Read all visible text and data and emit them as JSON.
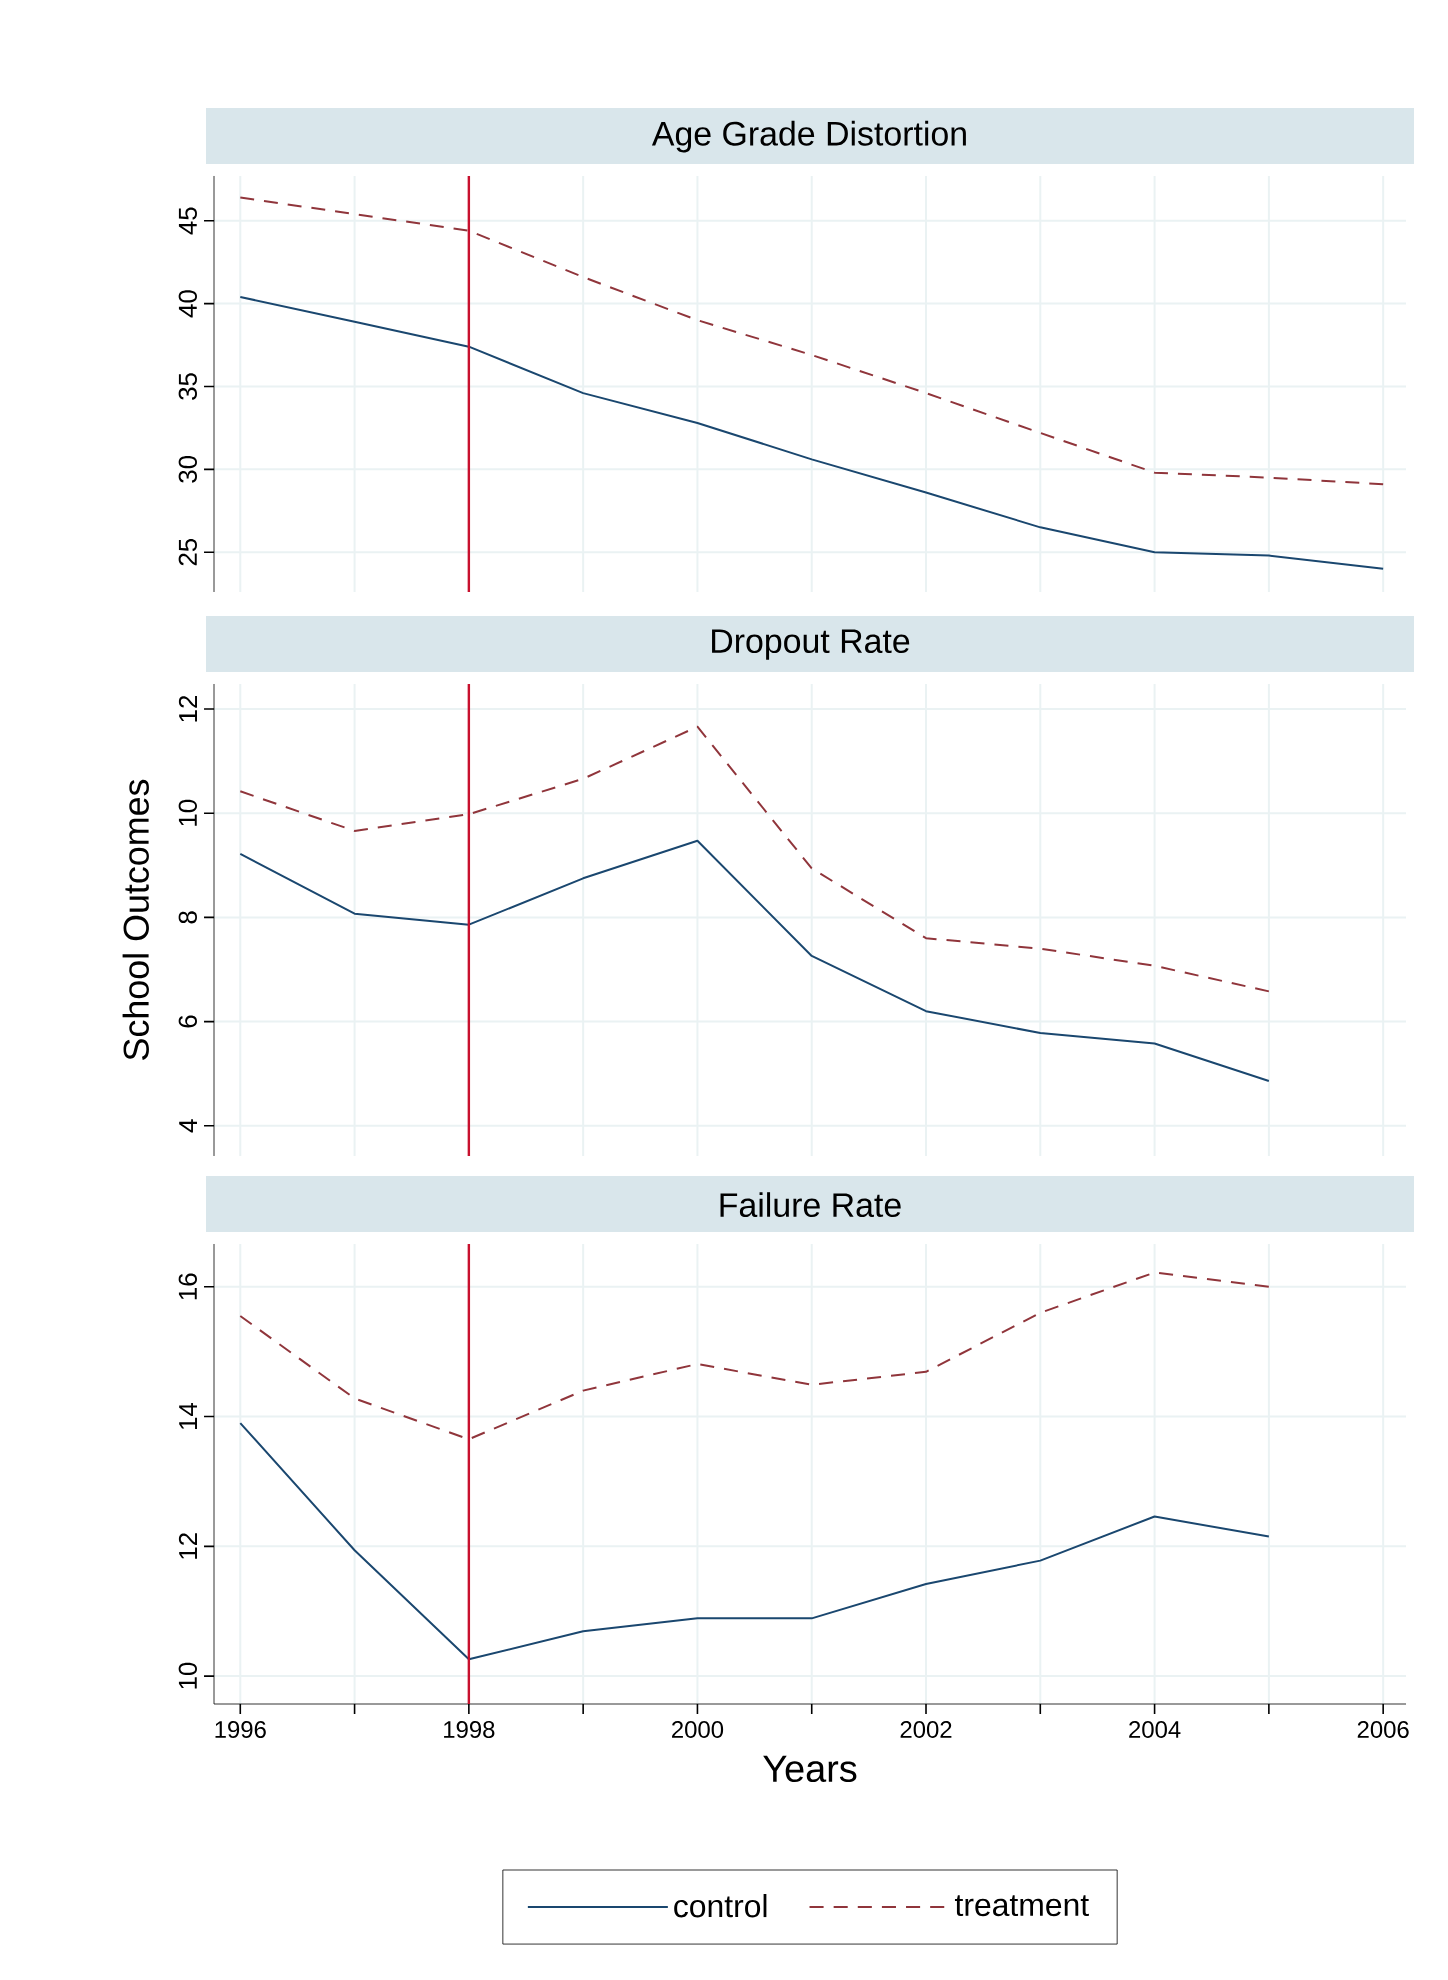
{
  "chart_data": [
    {
      "type": "line",
      "title": "Age Grade Distortion",
      "x": [
        1996,
        1997,
        1998,
        1999,
        2000,
        2001,
        2002,
        2003,
        2004,
        2005,
        2006
      ],
      "xlim": [
        1995.77,
        2006.2
      ],
      "xticks": [
        1996,
        {
          "value": 1997,
          "label": null
        },
        1998,
        {
          "value": 1999,
          "label": null
        },
        2000,
        {
          "value": 2001,
          "label": null
        },
        2002,
        {
          "value": 2003,
          "label": null
        },
        2004,
        {
          "value": 2005,
          "label": null
        },
        2006
      ],
      "ylim": [
        22.6,
        47.7
      ],
      "yticks": [
        25,
        30,
        35,
        40,
        45
      ],
      "grid": true,
      "tick_labels": "y",
      "ref_lines": [
        {
          "axis": "x",
          "value": 1998,
          "color": "#c8102e"
        }
      ],
      "series": [
        {
          "color": "#1a476f",
          "line_style": "solid",
          "values": [
            40.4,
            38.9,
            37.4,
            34.6,
            32.8,
            30.6,
            28.6,
            26.5,
            25.0,
            24.8,
            24.0
          ]
        },
        {
          "color": "#90353b",
          "line_style": "dashed",
          "values": [
            46.4,
            45.4,
            44.4,
            41.6,
            39.0,
            36.9,
            34.6,
            32.2,
            29.8,
            29.5,
            29.1
          ]
        }
      ]
    },
    {
      "type": "line",
      "title": "Dropout Rate",
      "ylabel": "School Outcomes",
      "x": [
        1996,
        1997,
        1998,
        1999,
        2000,
        2001,
        2002,
        2003,
        2004,
        2005
      ],
      "xlim": [
        1995.77,
        2006.2
      ],
      "xticks": [
        1996,
        {
          "value": 1997,
          "label": null
        },
        1998,
        {
          "value": 1999,
          "label": null
        },
        2000,
        {
          "value": 2001,
          "label": null
        },
        2002,
        {
          "value": 2003,
          "label": null
        },
        2004,
        {
          "value": 2005,
          "label": null
        },
        2006
      ],
      "ylim": [
        3.42,
        12.48
      ],
      "yticks": [
        4,
        6,
        8,
        10,
        12
      ],
      "grid": true,
      "tick_labels": "y",
      "ref_lines": [
        {
          "axis": "x",
          "value": 1998,
          "color": "#c8102e"
        }
      ],
      "series": [
        {
          "color": "#1a476f",
          "line_style": "solid",
          "values": [
            9.22,
            8.07,
            7.86,
            8.75,
            9.47,
            7.26,
            6.2,
            5.78,
            5.58,
            4.86
          ]
        },
        {
          "color": "#90353b",
          "line_style": "dashed",
          "values": [
            10.42,
            9.66,
            9.98,
            10.66,
            11.66,
            8.94,
            7.6,
            7.4,
            7.07,
            6.58
          ]
        }
      ]
    },
    {
      "type": "line",
      "title": "Failure Rate",
      "xlabel": "Years",
      "x": [
        1996,
        1997,
        1998,
        1999,
        2000,
        2001,
        2002,
        2003,
        2004,
        2005
      ],
      "xlim": [
        1995.77,
        2006.2
      ],
      "xticks": [
        1996,
        {
          "value": 1997,
          "label": null
        },
        1998,
        {
          "value": 1999,
          "label": null
        },
        2000,
        {
          "value": 2001,
          "label": null
        },
        2002,
        {
          "value": 2003,
          "label": null
        },
        2004,
        {
          "value": 2005,
          "label": null
        },
        2006
      ],
      "ylim": [
        9.57,
        16.66
      ],
      "yticks": [
        10,
        12,
        14,
        16
      ],
      "grid": true,
      "legend": "bottom",
      "ref_lines": [
        {
          "axis": "x",
          "value": 1998,
          "color": "#c8102e"
        }
      ],
      "series": [
        {
          "name": "control",
          "color": "#1a476f",
          "line_style": "solid",
          "values": [
            13.9,
            11.94,
            10.26,
            10.69,
            10.89,
            10.89,
            11.42,
            11.78,
            12.46,
            12.15
          ]
        },
        {
          "name": "treatment",
          "color": "#90353b",
          "line_style": "dashed",
          "values": [
            15.55,
            14.28,
            13.65,
            14.4,
            14.81,
            14.49,
            14.69,
            15.6,
            16.22,
            16.0
          ]
        }
      ]
    }
  ]
}
